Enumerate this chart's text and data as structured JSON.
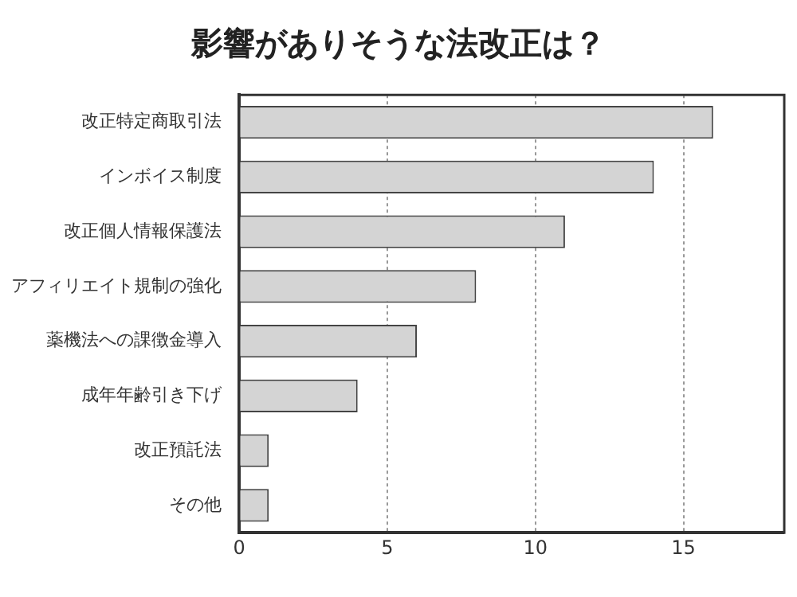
{
  "chart_data": {
    "type": "bar",
    "orientation": "horizontal",
    "title": "影響がありそうな法改正は？",
    "categories": [
      "改正特定商取引法",
      "インボイス制度",
      "改正個人情報保護法",
      "アフィリエイト規制の強化",
      "薬機法への課徴金導入",
      "成年年齢引き下げ",
      "改正預託法",
      "その他"
    ],
    "values": [
      16,
      14,
      11,
      8,
      6,
      4,
      1,
      1
    ],
    "color": "#d4d4d4",
    "xlim": [
      0,
      18.4
    ],
    "xticks": [
      0,
      5,
      10,
      15
    ],
    "grid": "x",
    "legend": false
  }
}
